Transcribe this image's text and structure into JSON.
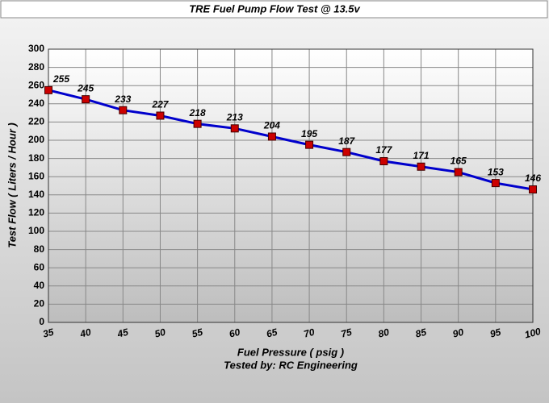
{
  "chart_data": {
    "type": "line",
    "title": "TRE Fuel Pump Flow Test @ 13.5v",
    "x_label": "Fuel Pressure ( psig )",
    "subtitle": "Tested by: RC Engineering",
    "y_label": "Test Flow ( Liters / Hour )",
    "x": [
      35,
      40,
      45,
      50,
      55,
      60,
      65,
      70,
      75,
      80,
      85,
      90,
      95,
      100
    ],
    "values": [
      255,
      245,
      233,
      227,
      218,
      213,
      204,
      195,
      187,
      177,
      171,
      165,
      153,
      146
    ],
    "color": "#0000cc",
    "marker_color": "#cc0000",
    "xlim": [
      35,
      100
    ],
    "xticks": [
      35,
      40,
      45,
      50,
      55,
      60,
      65,
      70,
      75,
      80,
      85,
      90,
      95,
      100
    ],
    "ylim": [
      0,
      300
    ],
    "yticks": [
      0,
      20,
      40,
      60,
      80,
      100,
      120,
      140,
      160,
      180,
      200,
      220,
      240,
      260,
      280,
      300
    ],
    "grid": true
  }
}
